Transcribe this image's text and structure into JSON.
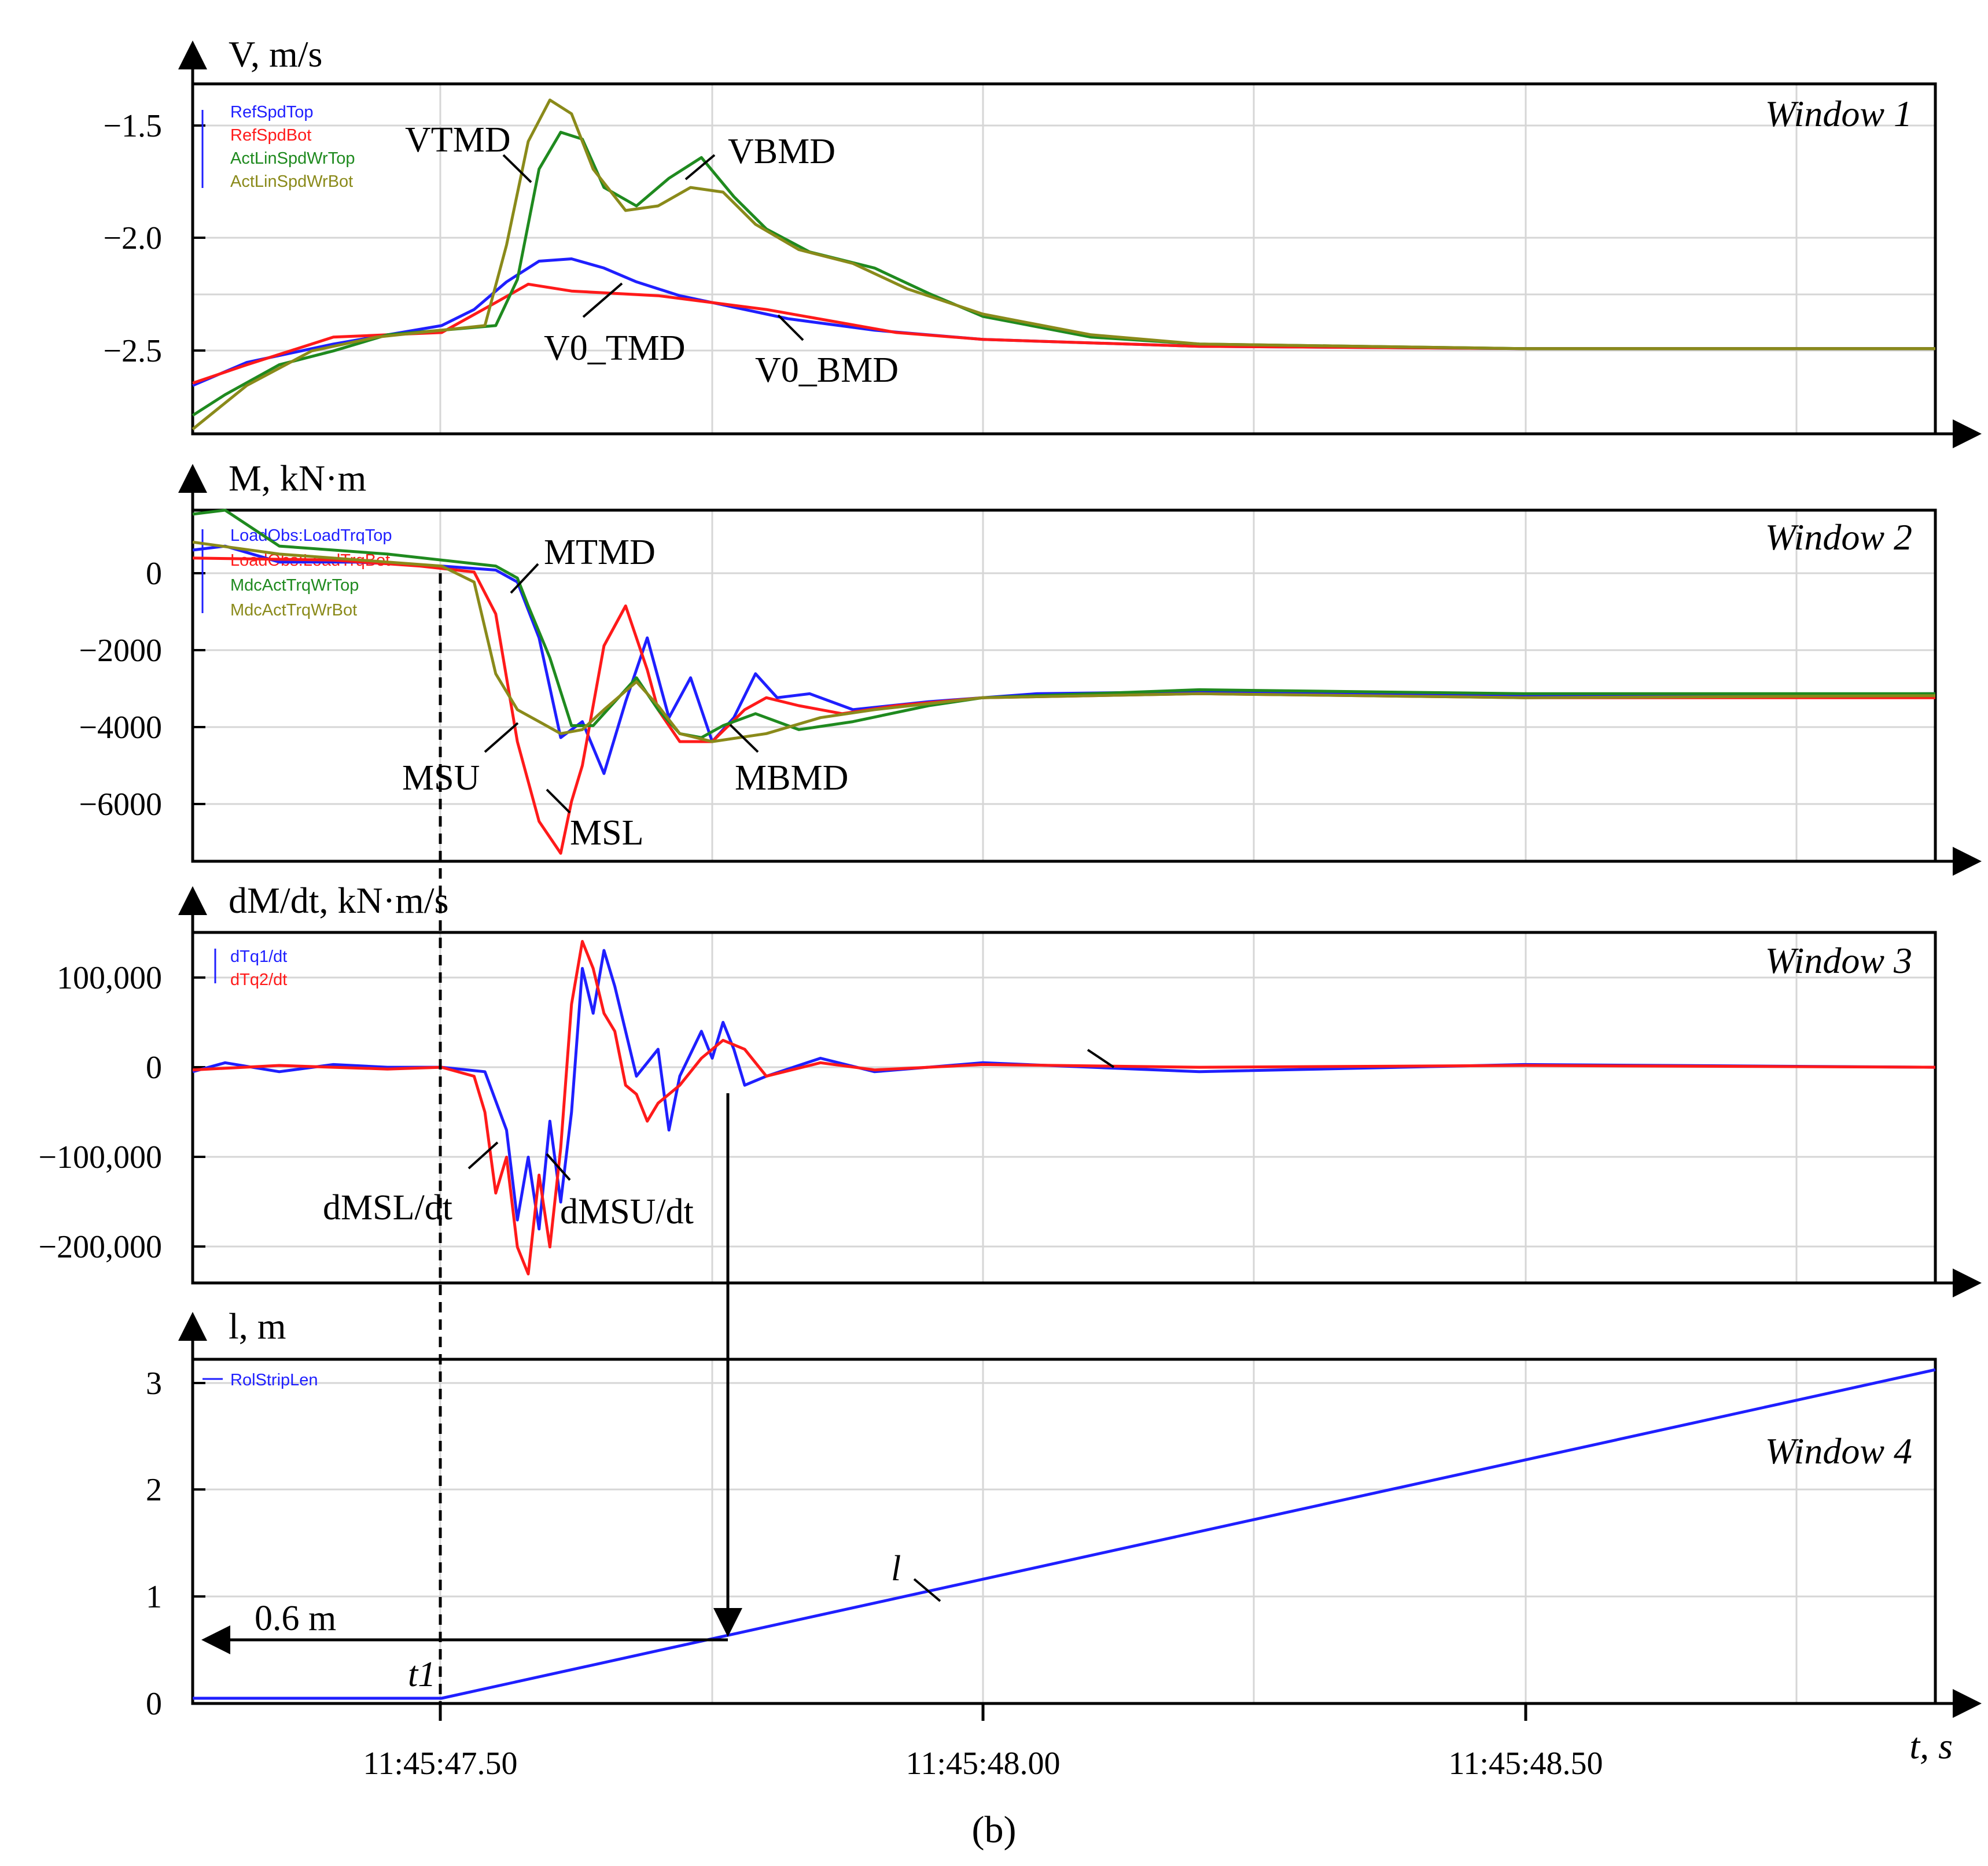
{
  "colors": {
    "blue": "#1f1fff",
    "red": "#ff1a1a",
    "green": "#1f8a1f",
    "olive": "#8a8a1a",
    "black": "#000000"
  },
  "caption": "(b)",
  "x_axis": {
    "label": "t, s",
    "ticks": [
      "11:45:47.50",
      "11:45:48.00",
      "11:45:48.50"
    ]
  },
  "chart_data": [
    {
      "type": "line",
      "window_label": "Window 1",
      "ylabel": "V, m/s",
      "y_ticks": [
        "−1.5",
        "−2.0",
        "−2.5"
      ],
      "ylim": [
        -2.87,
        -1.35
      ],
      "y_reversed": true,
      "xlim": [
        47.27,
        48.88
      ],
      "grid": true,
      "legend": [
        "RefSpdTop",
        "RefSpdBot",
        "ActLinSpdWrTop",
        "ActLinSpdWrBot"
      ],
      "annotations": [
        "VTMD",
        "VBMD",
        "V0_TMD",
        "V0_BMD"
      ],
      "series": [
        {
          "name": "RefSpdTop",
          "color": "blue",
          "x": [
            47.27,
            47.32,
            47.4,
            47.45,
            47.5,
            47.53,
            47.56,
            47.59,
            47.62,
            47.65,
            47.68,
            47.72,
            47.76,
            47.82,
            47.9,
            48.0,
            48.2,
            48.5,
            48.88
          ],
          "y": [
            -2.66,
            -2.56,
            -2.48,
            -2.44,
            -2.4,
            -2.33,
            -2.21,
            -2.12,
            -2.11,
            -2.15,
            -2.21,
            -2.27,
            -2.31,
            -2.37,
            -2.42,
            -2.46,
            -2.49,
            -2.5,
            -2.5
          ]
        },
        {
          "name": "RefSpdBot",
          "color": "red",
          "x": [
            47.27,
            47.32,
            47.4,
            47.45,
            47.5,
            47.55,
            47.58,
            47.62,
            47.66,
            47.7,
            47.75,
            47.8,
            47.86,
            47.92,
            48.0,
            48.2,
            48.5,
            48.88
          ],
          "y": [
            -2.65,
            -2.57,
            -2.45,
            -2.44,
            -2.43,
            -2.3,
            -2.22,
            -2.25,
            -2.26,
            -2.27,
            -2.3,
            -2.33,
            -2.38,
            -2.43,
            -2.46,
            -2.49,
            -2.5,
            -2.5
          ]
        },
        {
          "name": "ActLinSpdWrTop",
          "color": "green",
          "x": [
            47.27,
            47.3,
            47.35,
            47.4,
            47.45,
            47.5,
            47.55,
            47.57,
            47.59,
            47.61,
            47.63,
            47.65,
            47.68,
            47.71,
            47.74,
            47.77,
            47.8,
            47.84,
            47.9,
            47.95,
            48.0,
            48.1,
            48.2,
            48.5,
            48.88
          ],
          "y": [
            -2.79,
            -2.7,
            -2.57,
            -2.51,
            -2.44,
            -2.42,
            -2.4,
            -2.2,
            -1.72,
            -1.56,
            -1.59,
            -1.8,
            -1.88,
            -1.76,
            -1.67,
            -1.84,
            -1.98,
            -2.08,
            -2.15,
            -2.26,
            -2.36,
            -2.45,
            -2.48,
            -2.5,
            -2.5
          ]
        },
        {
          "name": "ActLinSpdWrBot",
          "color": "olive",
          "x": [
            47.27,
            47.32,
            47.38,
            47.44,
            47.5,
            47.54,
            47.56,
            47.58,
            47.6,
            47.62,
            47.64,
            47.67,
            47.7,
            47.73,
            47.76,
            47.79,
            47.83,
            47.88,
            47.93,
            48.0,
            48.1,
            48.2,
            48.5,
            48.88
          ],
          "y": [
            -2.85,
            -2.66,
            -2.51,
            -2.45,
            -2.42,
            -2.4,
            -2.05,
            -1.6,
            -1.42,
            -1.48,
            -1.72,
            -1.9,
            -1.88,
            -1.8,
            -1.82,
            -1.96,
            -2.07,
            -2.13,
            -2.24,
            -2.35,
            -2.44,
            -2.48,
            -2.5,
            -2.5
          ]
        }
      ]
    },
    {
      "type": "line",
      "window_label": "Window 2",
      "ylabel": "M, kN·m",
      "y_ticks": [
        "0",
        "−2000",
        "−4000",
        "−6000"
      ],
      "ylim": [
        -7400,
        1400
      ],
      "xlim": [
        47.27,
        48.88
      ],
      "grid": true,
      "legend": [
        "LoadObs:LoadTrqTop",
        "LoadObs:LoadTrqBot",
        "MdcActTrqWrTop",
        "MdcActTrqWrBot"
      ],
      "annotations": [
        "MTMD",
        "MSU",
        "MSL",
        "MBMD"
      ],
      "series": [
        {
          "name": "LoadObs:LoadTrqTop",
          "color": "blue",
          "x": [
            47.27,
            47.3,
            47.35,
            47.42,
            47.5,
            47.55,
            47.57,
            47.59,
            47.61,
            47.63,
            47.65,
            47.67,
            47.69,
            47.71,
            47.73,
            47.75,
            47.77,
            47.79,
            47.81,
            47.84,
            47.88,
            47.95,
            48.05,
            48.2,
            48.5,
            48.88
          ],
          "y": [
            400,
            500,
            100,
            100,
            0,
            -100,
            -400,
            -1800,
            -4300,
            -3900,
            -5200,
            -3400,
            -1800,
            -3800,
            -2800,
            -4400,
            -3800,
            -2700,
            -3300,
            -3200,
            -3600,
            -3400,
            -3200,
            -3150,
            -3250,
            -3200
          ]
        },
        {
          "name": "LoadObs:LoadTrqBot",
          "color": "red",
          "x": [
            47.27,
            47.4,
            47.48,
            47.53,
            47.55,
            47.57,
            47.59,
            47.61,
            47.62,
            47.63,
            47.65,
            47.67,
            47.69,
            47.7,
            47.72,
            47.75,
            47.78,
            47.8,
            47.83,
            47.87,
            47.92,
            48.0,
            48.2,
            48.5,
            48.88
          ],
          "y": [
            200,
            150,
            0,
            -150,
            -1200,
            -4400,
            -6400,
            -7200,
            -5900,
            -5000,
            -2000,
            -1000,
            -2600,
            -3600,
            -4400,
            -4400,
            -3600,
            -3300,
            -3500,
            -3700,
            -3500,
            -3300,
            -3200,
            -3300,
            -3300
          ]
        },
        {
          "name": "MdcActTrqWrTop",
          "color": "green",
          "x": [
            47.27,
            47.3,
            47.35,
            47.45,
            47.55,
            47.57,
            47.58,
            47.6,
            47.62,
            47.64,
            47.66,
            47.68,
            47.7,
            47.72,
            47.74,
            47.76,
            47.79,
            47.83,
            47.88,
            47.95,
            48.0,
            48.2,
            48.5,
            48.88
          ],
          "y": [
            1300,
            1400,
            500,
            300,
            0,
            -300,
            -1000,
            -2300,
            -4000,
            -4000,
            -3400,
            -2800,
            -3600,
            -4200,
            -4300,
            -4000,
            -3700,
            -4100,
            -3900,
            -3500,
            -3300,
            -3100,
            -3200,
            -3200
          ]
        },
        {
          "name": "MdcActTrqWrBot",
          "color": "olive",
          "x": [
            47.27,
            47.35,
            47.45,
            47.5,
            47.53,
            47.55,
            47.57,
            47.59,
            47.61,
            47.63,
            47.65,
            47.68,
            47.7,
            47.72,
            47.75,
            47.8,
            47.85,
            47.9,
            48.0,
            48.2,
            48.5,
            48.88
          ],
          "y": [
            600,
            300,
            100,
            0,
            -400,
            -2700,
            -3600,
            -3900,
            -4200,
            -4100,
            -3600,
            -2900,
            -3500,
            -4200,
            -4400,
            -4200,
            -3800,
            -3600,
            -3300,
            -3200,
            -3300,
            -3250
          ]
        }
      ]
    },
    {
      "type": "line",
      "window_label": "Window 3",
      "ylabel": "dM/dt, kN·m/s",
      "y_ticks": [
        "100,000",
        "0",
        "−100,000",
        "−200,000"
      ],
      "ylim": [
        -240000,
        150000
      ],
      "xlim": [
        47.27,
        48.88
      ],
      "grid": true,
      "legend": [
        "dTq1/dt",
        "dTq2/dt"
      ],
      "annotations": [
        "dMSL/dt",
        "dMSU/dt"
      ],
      "series": [
        {
          "name": "dTq1/dt",
          "color": "blue",
          "x": [
            47.27,
            47.3,
            47.35,
            47.4,
            47.45,
            47.5,
            47.54,
            47.56,
            47.57,
            47.58,
            47.59,
            47.6,
            47.61,
            47.62,
            47.63,
            47.64,
            47.65,
            47.66,
            47.67,
            47.68,
            47.7,
            47.71,
            47.72,
            47.74,
            47.75,
            47.76,
            47.77,
            47.78,
            47.8,
            47.85,
            47.9,
            48.0,
            48.2,
            48.5,
            48.88
          ],
          "y": [
            -5000,
            5000,
            -5000,
            3000,
            0,
            0,
            -5000,
            -70000,
            -170000,
            -100000,
            -180000,
            -60000,
            -150000,
            -50000,
            110000,
            60000,
            130000,
            90000,
            40000,
            -10000,
            20000,
            -70000,
            -10000,
            40000,
            10000,
            50000,
            20000,
            -20000,
            -10000,
            10000,
            -5000,
            5000,
            -5000,
            3000,
            0
          ]
        },
        {
          "name": "dTq2/dt",
          "color": "red",
          "x": [
            47.27,
            47.35,
            47.45,
            47.5,
            47.53,
            47.54,
            47.55,
            47.56,
            47.57,
            47.58,
            47.59,
            47.6,
            47.61,
            47.62,
            47.63,
            47.64,
            47.65,
            47.66,
            47.67,
            47.68,
            47.69,
            47.7,
            47.72,
            47.74,
            47.76,
            47.78,
            47.8,
            47.85,
            47.9,
            48.0,
            48.2,
            48.5,
            48.88
          ],
          "y": [
            -3000,
            2000,
            -2000,
            0,
            -10000,
            -50000,
            -140000,
            -100000,
            -200000,
            -230000,
            -120000,
            -200000,
            -90000,
            70000,
            140000,
            110000,
            60000,
            40000,
            -20000,
            -30000,
            -60000,
            -40000,
            -20000,
            10000,
            30000,
            20000,
            -10000,
            5000,
            -3000,
            3000,
            0,
            2000,
            0
          ]
        }
      ]
    },
    {
      "type": "line",
      "window_label": "Window 4",
      "ylabel": "l, m",
      "y_ticks": [
        "3",
        "2",
        "1",
        "0"
      ],
      "ylim": [
        -0.05,
        3.25
      ],
      "xlim": [
        47.27,
        48.88
      ],
      "grid": true,
      "legend": [
        "RolStripLen"
      ],
      "annotations": [
        "l",
        "0.6 m",
        "t1"
      ],
      "series": [
        {
          "name": "RolStripLen",
          "color": "blue",
          "x": [
            47.27,
            47.5,
            48.88
          ],
          "y": [
            0.0,
            0.0,
            3.15
          ]
        }
      ]
    }
  ]
}
